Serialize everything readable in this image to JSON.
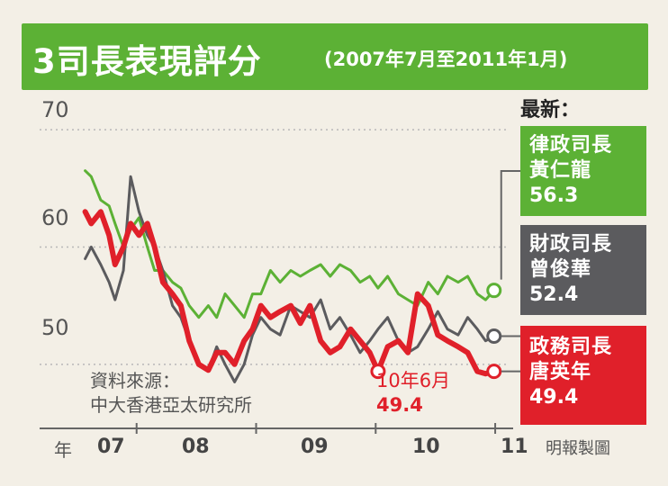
{
  "title": "3司長表現評分",
  "subtitle": "(2007年7月至2011年1月)",
  "latest_label": "最新：",
  "source_lines": [
    "資料來源：",
    "中大香港亞太研究所"
  ],
  "credit": "明報製圖",
  "callout": {
    "label": "10年6月",
    "value": "49.4"
  },
  "x_unit": "年",
  "boxes": {
    "green": {
      "line1": "律政司長",
      "line2": "黃仁龍",
      "value": "56.3"
    },
    "gray": {
      "line1": "財政司長",
      "line2": "曾俊華",
      "value": "52.4"
    },
    "red": {
      "line1": "政務司長",
      "line2": "唐英年",
      "value": "49.4"
    }
  },
  "colors": {
    "green": "#5cb135",
    "gray": "#5b5b5e",
    "red": "#e0202a"
  },
  "chart_data": {
    "type": "line",
    "title": "3司長表現評分",
    "subtitle": "(2007年7月至2011年1月)",
    "ylim": [
      45,
      72
    ],
    "yticks": [
      "70",
      "60",
      "50"
    ],
    "xtick_labels": [
      "07",
      "08",
      "09",
      "10",
      "11"
    ],
    "xlim": [
      2007.5,
      2011.1
    ],
    "grid": "horizontal dashed",
    "series": [
      {
        "name": "律政司長 黃仁龍",
        "color": "#5cb135",
        "x": [
          2007.55,
          2007.6,
          2007.68,
          2007.75,
          2007.8,
          2007.87,
          2007.93,
          2008.0,
          2008.07,
          2008.13,
          2008.2,
          2008.28,
          2008.35,
          2008.42,
          2008.5,
          2008.58,
          2008.65,
          2008.72,
          2008.8,
          2008.88,
          2008.95,
          2009.02,
          2009.1,
          2009.18,
          2009.27,
          2009.35,
          2009.43,
          2009.52,
          2009.6,
          2009.68,
          2009.77,
          2009.85,
          2009.93,
          2010.0,
          2010.08,
          2010.17,
          2010.25,
          2010.33,
          2010.42,
          2010.5,
          2010.58,
          2010.67,
          2010.75,
          2010.83,
          2010.9,
          2010.97
        ],
        "y": [
          66.5,
          66,
          64,
          63.5,
          62,
          60,
          61.5,
          62.5,
          60,
          58,
          58,
          57,
          56.5,
          55,
          54,
          55,
          54,
          56,
          55,
          54,
          56,
          56,
          58,
          57,
          58,
          57.5,
          58,
          58.5,
          57.5,
          58.5,
          58,
          57,
          57.5,
          56.5,
          57.5,
          56,
          55.5,
          55,
          57,
          56,
          57.5,
          57,
          57.5,
          56,
          55.5,
          56.3
        ]
      },
      {
        "name": "財政司長 曾俊華",
        "color": "#5b5b5e",
        "x": [
          2007.55,
          2007.6,
          2007.68,
          2007.75,
          2007.8,
          2007.87,
          2007.93,
          2008.0,
          2008.07,
          2008.13,
          2008.2,
          2008.28,
          2008.35,
          2008.42,
          2008.5,
          2008.58,
          2008.65,
          2008.72,
          2008.8,
          2008.88,
          2008.95,
          2009.02,
          2009.1,
          2009.18,
          2009.27,
          2009.35,
          2009.43,
          2009.52,
          2009.6,
          2009.68,
          2009.77,
          2009.85,
          2009.93,
          2010.0,
          2010.08,
          2010.17,
          2010.25,
          2010.33,
          2010.42,
          2010.5,
          2010.58,
          2010.67,
          2010.75,
          2010.83,
          2010.9,
          2010.97
        ],
        "y": [
          59,
          60,
          58.5,
          57,
          55.5,
          58,
          66,
          63,
          61,
          60,
          58,
          55,
          54,
          52,
          50,
          49.5,
          51.5,
          50,
          48.5,
          50,
          52.5,
          54,
          53,
          52.5,
          55,
          54.5,
          54,
          55.5,
          53,
          54,
          52.5,
          51,
          52,
          53,
          54,
          52,
          51,
          51.5,
          53,
          54.5,
          53,
          52.5,
          54,
          53,
          52,
          52.4
        ]
      },
      {
        "name": "政務司長 唐英年",
        "color": "#e0202a",
        "x": [
          2007.55,
          2007.6,
          2007.68,
          2007.75,
          2007.8,
          2007.87,
          2007.93,
          2008.0,
          2008.07,
          2008.13,
          2008.2,
          2008.28,
          2008.35,
          2008.42,
          2008.5,
          2008.58,
          2008.65,
          2008.72,
          2008.8,
          2008.88,
          2008.95,
          2009.02,
          2009.1,
          2009.18,
          2009.27,
          2009.35,
          2009.43,
          2009.52,
          2009.6,
          2009.68,
          2009.77,
          2009.85,
          2009.93,
          2010.0,
          2010.08,
          2010.17,
          2010.25,
          2010.33,
          2010.42,
          2010.5,
          2010.58,
          2010.67,
          2010.75,
          2010.83,
          2010.9,
          2010.97
        ],
        "y": [
          63,
          62,
          63,
          61,
          58.5,
          60,
          62,
          61,
          62,
          60,
          57,
          56,
          55,
          52,
          50,
          49.5,
          51,
          51,
          50,
          52,
          53,
          55,
          54,
          54.5,
          55,
          53.5,
          55,
          52,
          51,
          51.5,
          53,
          52,
          51,
          49.4,
          51.5,
          52,
          51,
          56,
          55,
          52.5,
          52,
          51.5,
          51,
          49.4,
          49.2,
          49.4
        ]
      }
    ],
    "highlight_points": [
      {
        "series": 2,
        "x": 2010.0,
        "y": 49.4
      },
      {
        "series": 2,
        "x": 2010.97,
        "y": 49.4
      },
      {
        "series": 0,
        "x": 2010.97,
        "y": 56.3
      },
      {
        "series": 1,
        "x": 2010.97,
        "y": 52.4
      }
    ]
  }
}
